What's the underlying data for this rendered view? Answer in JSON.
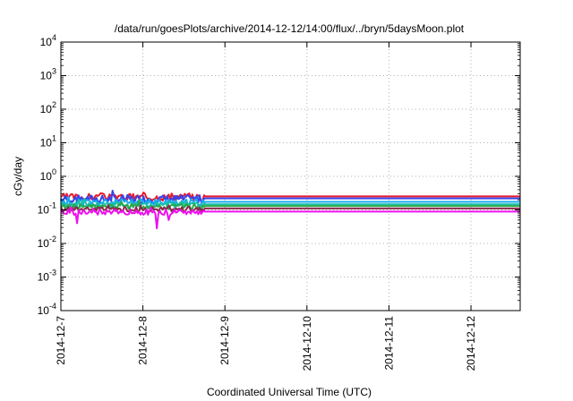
{
  "chart_data": {
    "type": "line",
    "title": "/data/run/goesPlots/archive/2014-12-12/14:00/flux/../bryn/5daysMoon.plot",
    "xlabel": "Coordinated Universal Time (UTC)",
    "ylabel": "cGy/day",
    "yscale": "log",
    "ylim": [
      0.0001,
      10000
    ],
    "xlim": [
      0,
      5.6
    ],
    "grid": true,
    "x_ticks": [
      {
        "x": 0,
        "label": "2014-12-7"
      },
      {
        "x": 1,
        "label": "2014-12-8"
      },
      {
        "x": 2,
        "label": "2014-12-9"
      },
      {
        "x": 3,
        "label": "2014-12-10"
      },
      {
        "x": 4,
        "label": "2014-12-11"
      },
      {
        "x": 5,
        "label": "2014-12-12"
      }
    ],
    "y_ticks": [
      {
        "exp": "-4",
        "value": 0.0001
      },
      {
        "exp": "-3",
        "value": 0.001
      },
      {
        "exp": "-2",
        "value": 0.01
      },
      {
        "exp": "-1",
        "value": 0.1
      },
      {
        "exp": "0",
        "value": 1
      },
      {
        "exp": "1",
        "value": 10
      },
      {
        "exp": "2",
        "value": 100
      },
      {
        "exp": "3",
        "value": 1000
      },
      {
        "exp": "4",
        "value": 10000
      }
    ],
    "y_tick_base": "10",
    "series": [
      {
        "color": "#e8192c",
        "base": 0.24,
        "noise": 0.22,
        "seed": 3,
        "dips": [],
        "active_end": 1.75
      },
      {
        "color": "#3344ee",
        "base": 0.21,
        "noise": 0.24,
        "seed": 7,
        "dips": [],
        "active_end": 1.75
      },
      {
        "color": "#18a8f0",
        "base": 0.165,
        "noise": 0.22,
        "seed": 11,
        "dips": [],
        "active_end": 1.75
      },
      {
        "color": "#16c2a8",
        "base": 0.14,
        "noise": 0.18,
        "seed": 5,
        "dips": [],
        "active_end": 1.75
      },
      {
        "color": "#2aa84a",
        "base": 0.125,
        "noise": 0.16,
        "seed": 13,
        "dips": [],
        "active_end": 1.75
      },
      {
        "color": "#8b2a4a",
        "base": 0.105,
        "noise": 0.14,
        "seed": 17,
        "dips": [],
        "active_end": 1.75
      },
      {
        "color": "#ee10ee",
        "base": 0.085,
        "noise": 0.16,
        "seed": 19,
        "dips": [
          {
            "x": 0.2,
            "y": 0.04
          },
          {
            "x": 1.17,
            "y": 0.028
          },
          {
            "x": 1.32,
            "y": 0.05
          }
        ],
        "active_end": 1.75
      }
    ]
  }
}
